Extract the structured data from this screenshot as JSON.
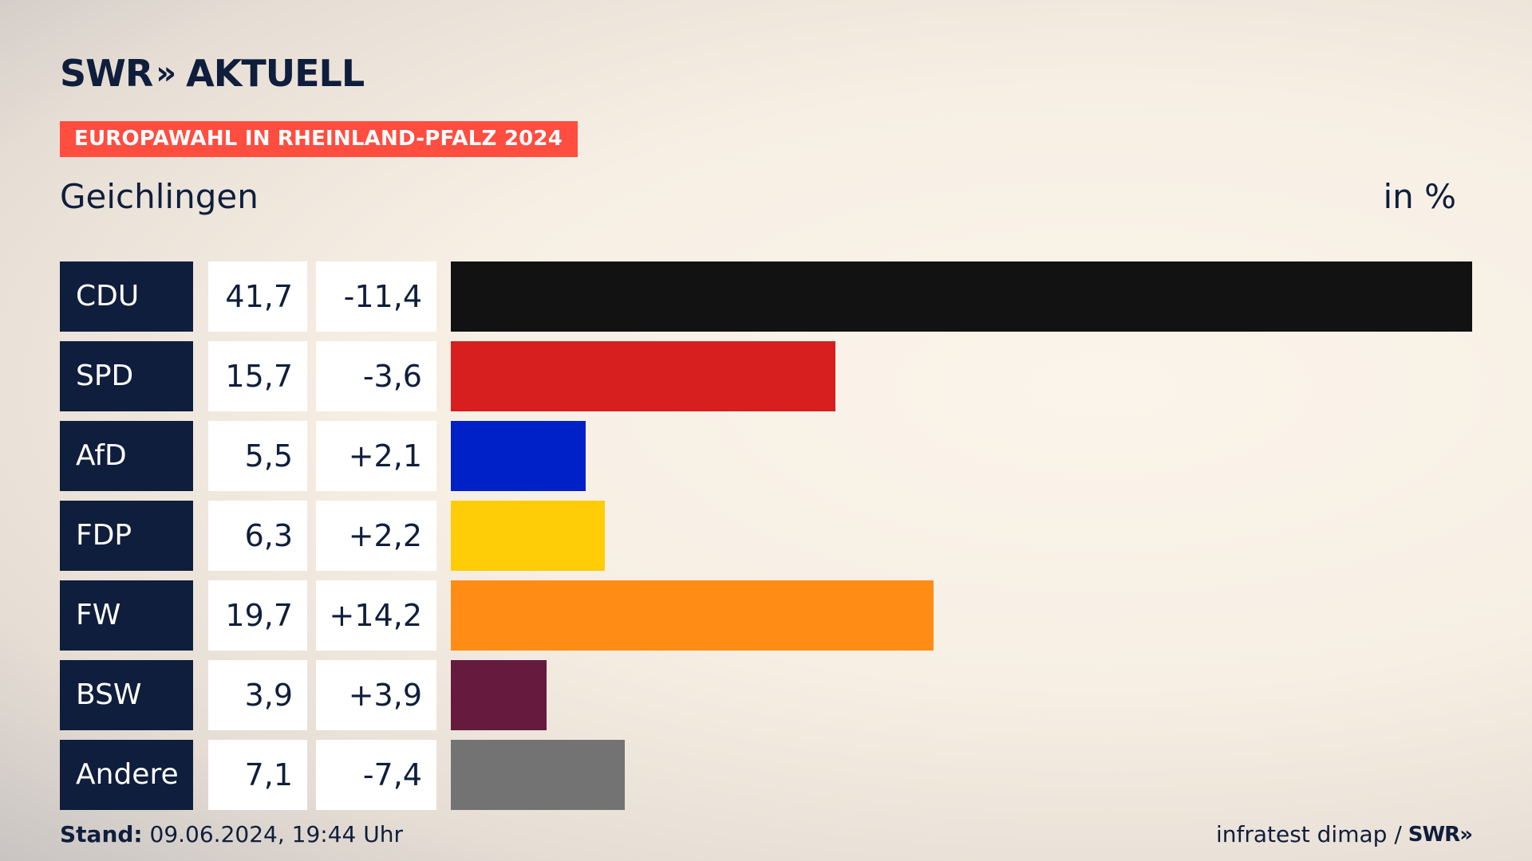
{
  "header": {
    "logo_main": "SWR",
    "logo_chevrons": "»",
    "logo_sub": "AKTUELL",
    "banner": "EUROPAWAHL IN RHEINLAND-PFALZ 2024",
    "region": "Geichlingen",
    "unit": "in %"
  },
  "colors": {
    "CDU": "#121212",
    "SPD": "#d71f1f",
    "AfD": "#0021c8",
    "FDP": "#ffcc08",
    "FW": "#ff8c14",
    "BSW": "#661a3d",
    "Andere": "#737373"
  },
  "chart_data": {
    "type": "bar",
    "orientation": "horizontal",
    "title": "EUROPAWAHL IN RHEINLAND-PFALZ 2024",
    "subtitle": "Geichlingen",
    "unit": "in %",
    "categories": [
      "CDU",
      "SPD",
      "AfD",
      "FDP",
      "FW",
      "BSW",
      "Andere"
    ],
    "values": [
      41.7,
      15.7,
      5.5,
      6.3,
      19.7,
      3.9,
      7.1
    ],
    "value_labels": [
      "41,7",
      "15,7",
      "5,5",
      "6,3",
      "19,7",
      "3,9",
      "7,1"
    ],
    "diff_labels": [
      "-11,4",
      "-3,6",
      "+2,1",
      "+2,2",
      "+14,2",
      "+3,9",
      "-7,4"
    ],
    "xlim": [
      0,
      41.7
    ]
  },
  "footer": {
    "stand_label": "Stand:",
    "stand_value": " 09.06.2024, 19:44 Uhr",
    "source": "infratest dimap /",
    "source_logo": "SWR»"
  }
}
